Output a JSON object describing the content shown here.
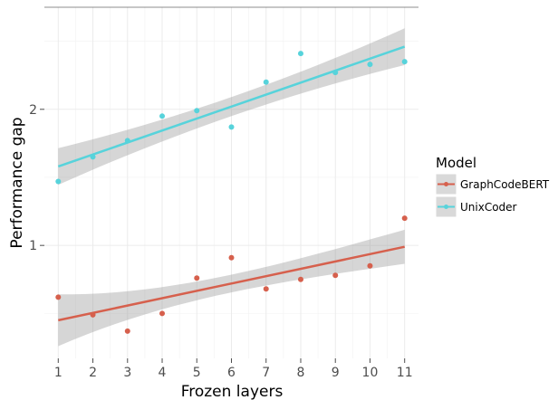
{
  "chart_data": {
    "type": "scatter",
    "title": "",
    "xlabel": "Frozen layers",
    "ylabel": "Performance gap",
    "x_ticks": [
      1,
      2,
      3,
      4,
      5,
      6,
      7,
      8,
      9,
      10,
      11
    ],
    "y_ticks": [
      1,
      2
    ],
    "xlim": [
      0.6,
      11.4
    ],
    "ylim": [
      0.17,
      2.75
    ],
    "grid": true,
    "legend": {
      "title": "Model",
      "position": "right"
    },
    "series": [
      {
        "name": "GraphCodeBERT",
        "color": "#d6604d",
        "x": [
          1,
          2,
          3,
          4,
          5,
          6,
          7,
          8,
          9,
          10,
          11
        ],
        "y": [
          0.62,
          0.49,
          0.37,
          0.5,
          0.76,
          0.91,
          0.68,
          0.75,
          0.78,
          0.85,
          1.2
        ],
        "fit": {
          "start": 0.45,
          "end": 0.99,
          "ci_start": [
            0.26,
            0.64
          ],
          "ci_end": [
            0.86,
            1.11
          ]
        }
      },
      {
        "name": "UnixCoder",
        "color": "#57d3db",
        "x": [
          1,
          2,
          3,
          4,
          5,
          6,
          7,
          8,
          9,
          10,
          11
        ],
        "y": [
          1.47,
          1.65,
          1.77,
          1.95,
          1.99,
          1.87,
          2.2,
          2.41,
          2.27,
          2.33,
          2.35
        ],
        "fit": {
          "start": 1.58,
          "end": 2.46,
          "ci_start": [
            1.45,
            1.72
          ],
          "ci_end": [
            2.33,
            2.6
          ]
        }
      }
    ]
  }
}
